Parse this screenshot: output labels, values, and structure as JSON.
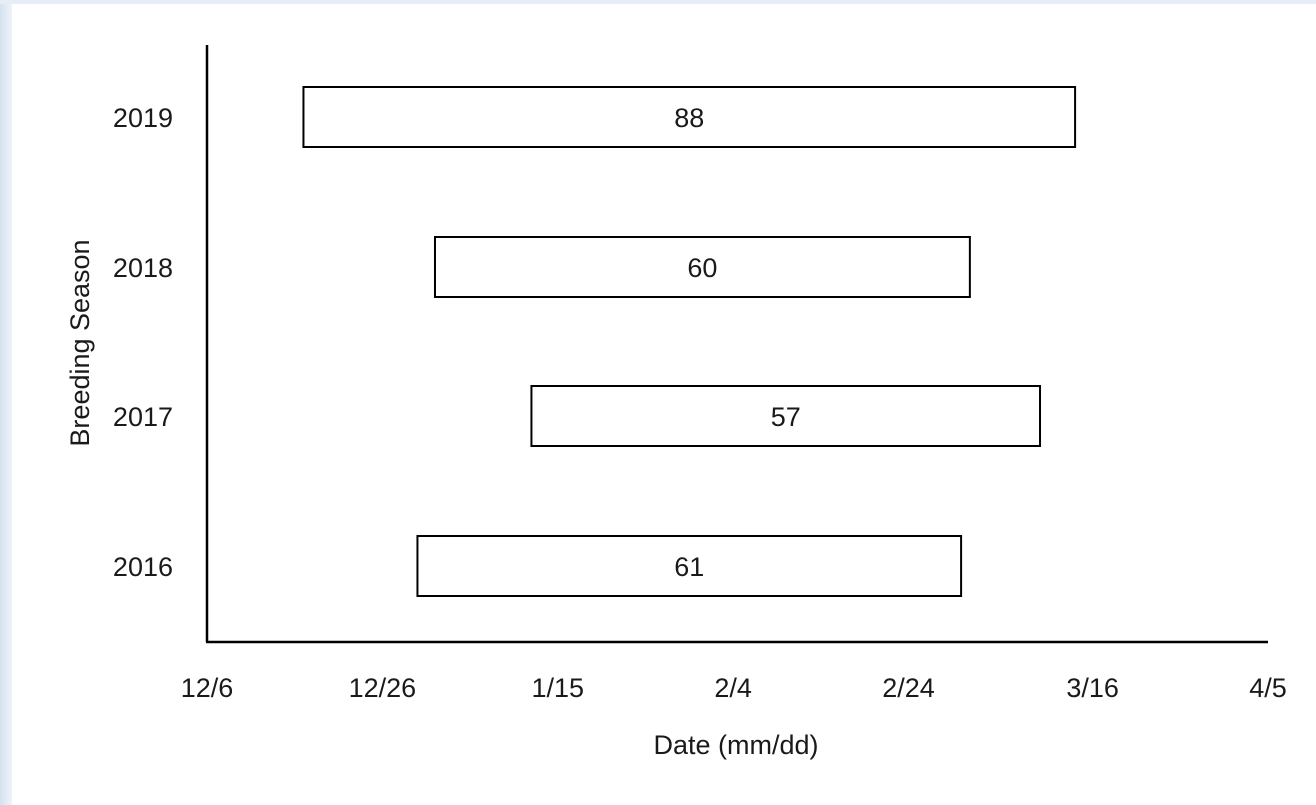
{
  "chart_data": {
    "type": "bar",
    "orientation": "horizontal",
    "style": "floating-range",
    "title": "",
    "xlabel": "Date (mm/dd)",
    "ylabel": "Breeding Season",
    "xlim": [
      "12/6",
      "4/5"
    ],
    "x_ticks": [
      "12/6",
      "12/26",
      "1/15",
      "2/4",
      "2/24",
      "3/16",
      "4/5"
    ],
    "categories": [
      "2016",
      "2017",
      "2018",
      "2019"
    ],
    "bars": [
      {
        "season": "2016",
        "start": "12/30",
        "end": "3/1",
        "label": "61"
      },
      {
        "season": "2017",
        "start": "1/12",
        "end": "3/10",
        "label": "57"
      },
      {
        "season": "2018",
        "start": "1/1",
        "end": "3/2",
        "label": "60"
      },
      {
        "season": "2019",
        "start": "12/17",
        "end": "3/14",
        "label": "88"
      }
    ],
    "grid": false,
    "legend": "none",
    "colors": {
      "bar_fill": "#ffffff",
      "bar_stroke": "#000000",
      "axis": "#000000"
    }
  }
}
